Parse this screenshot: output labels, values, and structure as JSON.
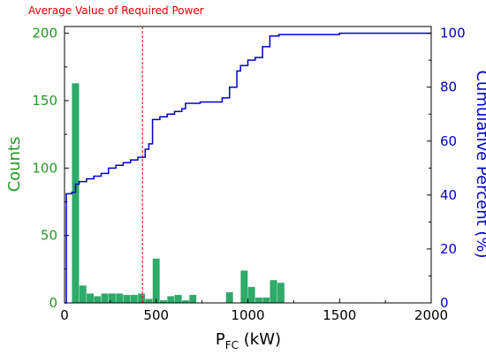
{
  "chart_data": {
    "type": "bar",
    "annotation": "Average Value of Required Power",
    "average_value": 425,
    "xlabel_main": "P",
    "xlabel_sub": "FC",
    "xlabel_unit": " (kW)",
    "ylabel_left": "Counts",
    "ylabel_right": "Cumulative Percent (%)",
    "xlim": [
      0,
      2000
    ],
    "ylim_left": [
      0,
      205
    ],
    "ylim_right": [
      0,
      102.5
    ],
    "xticks": [
      0,
      500,
      1000,
      1500,
      2000
    ],
    "xtick_labels": [
      "0",
      "500",
      "1000",
      "1500",
      "2000"
    ],
    "yticks_left": [
      0,
      50,
      100,
      150,
      200
    ],
    "ytick_labels_left": [
      "0",
      "50",
      "100",
      "150",
      "200"
    ],
    "yticks_right": [
      0,
      20,
      40,
      60,
      80,
      100
    ],
    "ytick_labels_right": [
      "0",
      "20",
      "40",
      "60",
      "80",
      "100"
    ],
    "bin_width": 40,
    "series": [
      {
        "name": "Counts",
        "color": "#2eaa6a",
        "bins": [
          {
            "x": 40,
            "value": 163
          },
          {
            "x": 80,
            "value": 13
          },
          {
            "x": 120,
            "value": 7
          },
          {
            "x": 160,
            "value": 5
          },
          {
            "x": 200,
            "value": 7
          },
          {
            "x": 240,
            "value": 7
          },
          {
            "x": 280,
            "value": 7
          },
          {
            "x": 320,
            "value": 6
          },
          {
            "x": 360,
            "value": 6
          },
          {
            "x": 400,
            "value": 7
          },
          {
            "x": 440,
            "value": 3
          },
          {
            "x": 480,
            "value": 33
          },
          {
            "x": 520,
            "value": 2
          },
          {
            "x": 560,
            "value": 5
          },
          {
            "x": 600,
            "value": 6
          },
          {
            "x": 640,
            "value": 2
          },
          {
            "x": 680,
            "value": 6
          },
          {
            "x": 880,
            "value": 8
          },
          {
            "x": 960,
            "value": 24
          },
          {
            "x": 1000,
            "value": 12
          },
          {
            "x": 1040,
            "value": 4
          },
          {
            "x": 1080,
            "value": 4
          },
          {
            "x": 1120,
            "value": 17
          },
          {
            "x": 1160,
            "value": 15
          }
        ]
      },
      {
        "name": "Cumulative Percent (%)",
        "color": "#0000cc",
        "steps": [
          [
            0,
            0
          ],
          [
            10,
            0
          ],
          [
            10,
            40.5
          ],
          [
            40,
            40.5
          ],
          [
            40,
            41
          ],
          [
            60,
            41
          ],
          [
            60,
            44
          ],
          [
            80,
            44
          ],
          [
            80,
            45
          ],
          [
            120,
            45
          ],
          [
            120,
            46
          ],
          [
            160,
            46
          ],
          [
            160,
            47
          ],
          [
            200,
            47
          ],
          [
            200,
            48
          ],
          [
            240,
            48
          ],
          [
            240,
            50
          ],
          [
            280,
            50
          ],
          [
            280,
            51
          ],
          [
            320,
            51
          ],
          [
            320,
            52
          ],
          [
            360,
            52
          ],
          [
            360,
            53
          ],
          [
            400,
            53
          ],
          [
            400,
            54
          ],
          [
            440,
            54
          ],
          [
            440,
            57
          ],
          [
            460,
            57
          ],
          [
            460,
            59
          ],
          [
            480,
            59
          ],
          [
            480,
            68
          ],
          [
            520,
            68
          ],
          [
            520,
            69
          ],
          [
            560,
            69
          ],
          [
            560,
            70
          ],
          [
            600,
            70
          ],
          [
            600,
            71
          ],
          [
            640,
            71
          ],
          [
            640,
            72
          ],
          [
            660,
            72
          ],
          [
            660,
            74
          ],
          [
            740,
            74
          ],
          [
            740,
            74.5
          ],
          [
            860,
            74.5
          ],
          [
            860,
            76
          ],
          [
            900,
            76
          ],
          [
            900,
            80
          ],
          [
            940,
            80
          ],
          [
            940,
            86
          ],
          [
            960,
            86
          ],
          [
            960,
            88
          ],
          [
            1000,
            88
          ],
          [
            1000,
            90
          ],
          [
            1040,
            90
          ],
          [
            1040,
            91
          ],
          [
            1080,
            91
          ],
          [
            1080,
            95
          ],
          [
            1120,
            95
          ],
          [
            1120,
            99
          ],
          [
            1170,
            99
          ],
          [
            1170,
            99.5
          ],
          [
            1500,
            99.5
          ],
          [
            1500,
            100
          ],
          [
            2000,
            100
          ]
        ]
      }
    ],
    "colors": {
      "counts_axis": "#1f9a1f",
      "percent_axis": "#0000cc",
      "average_line": "#e00000",
      "annotation": "#e00000"
    }
  }
}
